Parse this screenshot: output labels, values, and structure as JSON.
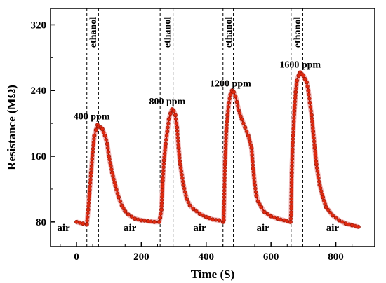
{
  "chart_data": {
    "type": "line",
    "xlabel": "Time (S)",
    "ylabel": "Resistance (MΩ)",
    "xlim": [
      -80,
      920
    ],
    "ylim": [
      50,
      340
    ],
    "xticks": [
      0,
      200,
      400,
      600,
      800
    ],
    "yticks": [
      80,
      160,
      240,
      320
    ],
    "grid": false,
    "series": [
      {
        "color": "#cc1100",
        "x": [
          0,
          20,
          32,
          36,
          40,
          45,
          50,
          55,
          60,
          65,
          68,
          75,
          80,
          88,
          95,
          100,
          110,
          120,
          130,
          140,
          150,
          160,
          180,
          200,
          220,
          240,
          255,
          258,
          262,
          266,
          270,
          275,
          280,
          285,
          290,
          295,
          300,
          305,
          310,
          315,
          320,
          330,
          340,
          350,
          360,
          380,
          400,
          420,
          440,
          452,
          454,
          458,
          462,
          466,
          470,
          475,
          480,
          485,
          490,
          495,
          500,
          510,
          520,
          530,
          540,
          545,
          550,
          555,
          560,
          570,
          580,
          600,
          620,
          640,
          660,
          662,
          664,
          668,
          672,
          676,
          680,
          685,
          690,
          695,
          700,
          705,
          710,
          715,
          720,
          725,
          730,
          735,
          740,
          750,
          760,
          770,
          790,
          810,
          830,
          850,
          870
        ],
        "y": [
          80,
          78,
          77,
          95,
          115,
          140,
          165,
          185,
          192,
          198,
          196,
          195,
          193,
          185,
          175,
          160,
          140,
          124,
          110,
          100,
          93,
          89,
          84,
          82,
          81,
          80,
          80,
          85,
          95,
          130,
          155,
          175,
          190,
          205,
          212,
          217,
          215,
          210,
          195,
          170,
          150,
          125,
          108,
          100,
          96,
          90,
          86,
          83,
          82,
          80,
          82,
          150,
          190,
          210,
          225,
          235,
          240,
          238,
          233,
          226,
          216,
          205,
          195,
          185,
          170,
          145,
          125,
          112,
          105,
          98,
          92,
          87,
          84,
          82,
          80,
          88,
          140,
          185,
          215,
          238,
          252,
          258,
          262,
          260,
          258,
          254,
          250,
          240,
          225,
          210,
          190,
          170,
          150,
          125,
          110,
          98,
          88,
          82,
          78,
          76,
          74
        ]
      }
    ],
    "dashed_lines_x": [
      32,
      68,
      258,
      298,
      452,
      484,
      662,
      698
    ],
    "annotations": [
      {
        "text": "400 ppm",
        "x": 47,
        "y": 205
      },
      {
        "text": "800 ppm",
        "x": 280,
        "y": 223
      },
      {
        "text": "1200 ppm",
        "x": 475,
        "y": 245
      },
      {
        "text": "1600 ppm",
        "x": 690,
        "y": 268
      }
    ],
    "ethanol_labels": [
      {
        "text": "ethanol",
        "x": 50
      },
      {
        "text": "ethanol",
        "x": 278
      },
      {
        "text": "ethanol",
        "x": 468
      },
      {
        "text": "ethanol",
        "x": 680
      }
    ],
    "region_labels": [
      {
        "text": "air",
        "x": -40
      },
      {
        "text": "air",
        "x": 165
      },
      {
        "text": "air",
        "x": 380
      },
      {
        "text": "air",
        "x": 575
      },
      {
        "text": "air",
        "x": 790
      }
    ]
  }
}
